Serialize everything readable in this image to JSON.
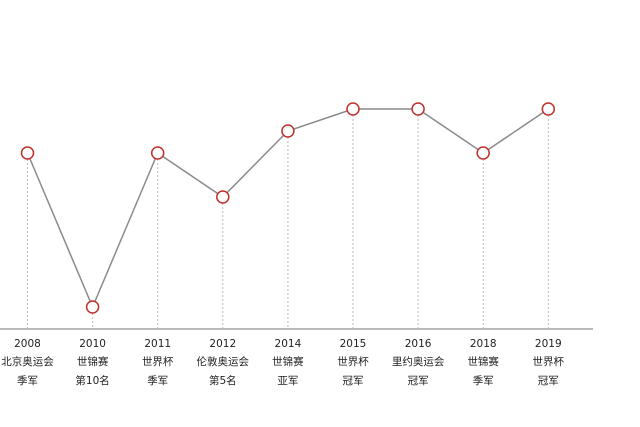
{
  "chart_data": {
    "type": "line",
    "categories": [
      "2008",
      "2010",
      "2011",
      "2012",
      "2014",
      "2015",
      "2016",
      "2018",
      "2019"
    ],
    "events": [
      "北京奥运会",
      "世锦赛",
      "世界杯",
      "伦敦奥运会",
      "世锦赛",
      "世界杯",
      "里约奥运会",
      "世锦赛",
      "世界杯"
    ],
    "values": [
      3,
      10,
      3,
      5,
      2,
      1,
      1,
      3,
      1
    ],
    "value_labels": [
      "季军",
      "第10名",
      "季军",
      "第5名",
      "亚军",
      "冠军",
      "冠军",
      "季军",
      "冠军"
    ],
    "ylim": [
      0,
      11
    ],
    "y_inverted": true,
    "line_color": "#8a8a8a",
    "marker_color": "#c0302b",
    "label_color": "#b3261e"
  }
}
